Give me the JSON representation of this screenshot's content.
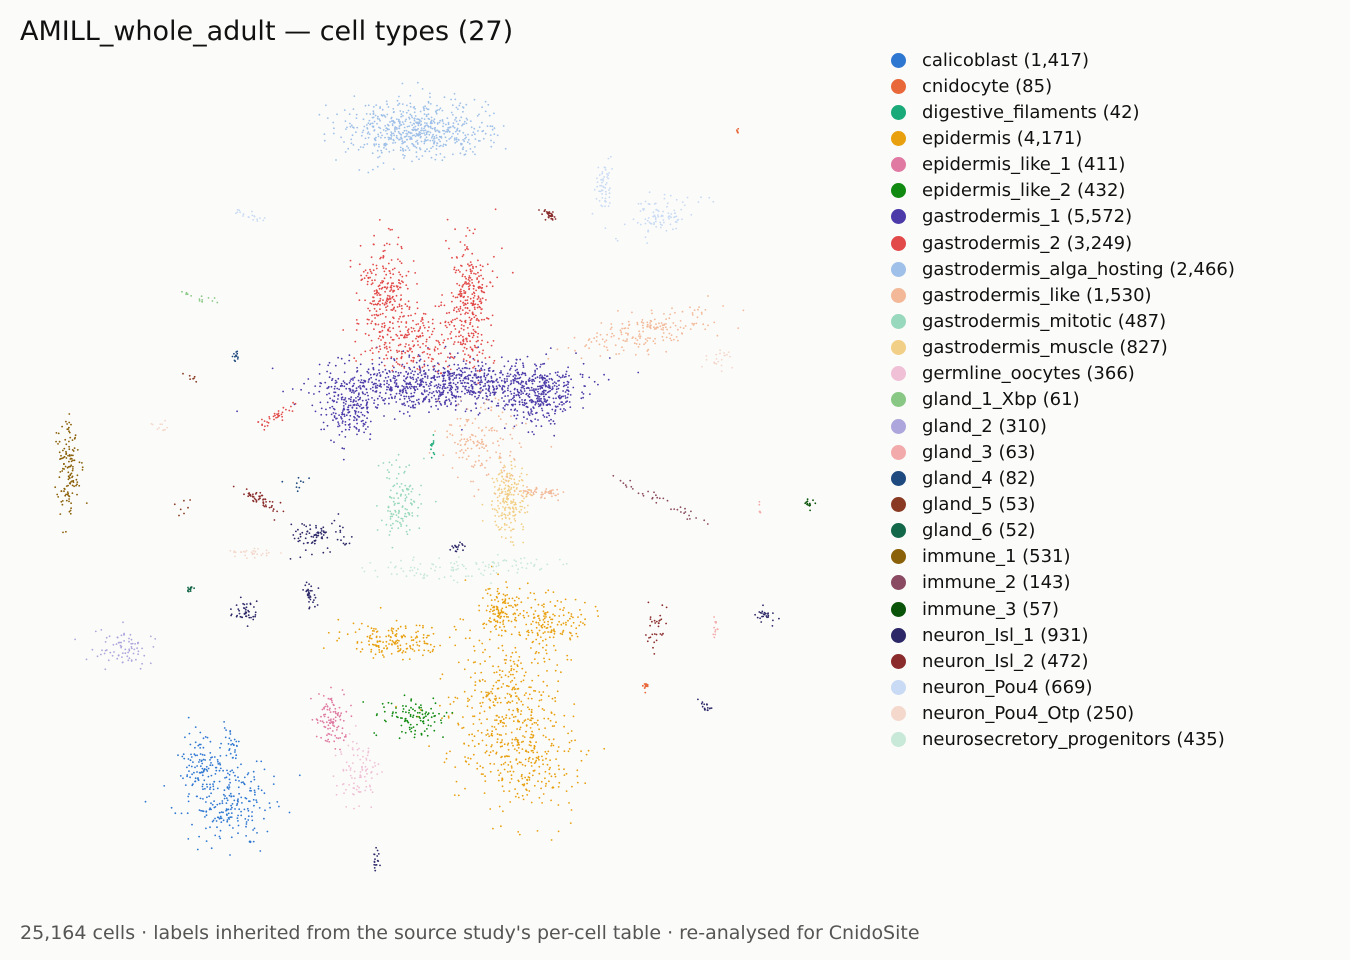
{
  "title": "AMILL_whole_adult — cell types (27)",
  "footer": "25,164 cells · labels inherited from the source study's per-cell table · re-analysed for CnidoSite",
  "legend": [
    {
      "label": "calicoblast (1,417)",
      "color": "#2f78d2"
    },
    {
      "label": "cnidocyte (85)",
      "color": "#e8683a"
    },
    {
      "label": "digestive_filaments (42)",
      "color": "#1aaa7a"
    },
    {
      "label": "epidermis (4,171)",
      "color": "#e8a00e"
    },
    {
      "label": "epidermis_like_1 (411)",
      "color": "#e07aa2"
    },
    {
      "label": "epidermis_like_2 (432)",
      "color": "#118a11"
    },
    {
      "label": "gastrodermis_1 (5,572)",
      "color": "#4b3aa8"
    },
    {
      "label": "gastrodermis_2 (3,249)",
      "color": "#e24a4a"
    },
    {
      "label": "gastrodermis_alga_hosting (2,466)",
      "color": "#9fc0e8"
    },
    {
      "label": "gastrodermis_like (1,530)",
      "color": "#f2b898"
    },
    {
      "label": "gastrodermis_mitotic (487)",
      "color": "#98d8bc"
    },
    {
      "label": "gastrodermis_muscle (827)",
      "color": "#f2cf86"
    },
    {
      "label": "germline_oocytes (366)",
      "color": "#f0c0d6"
    },
    {
      "label": "gland_1_Xbp (61)",
      "color": "#88c884"
    },
    {
      "label": "gland_2 (310)",
      "color": "#aca6dc"
    },
    {
      "label": "gland_3 (63)",
      "color": "#f2aaaa"
    },
    {
      "label": "gland_4 (82)",
      "color": "#1f4a80"
    },
    {
      "label": "gland_5 (53)",
      "color": "#8a3a22"
    },
    {
      "label": "gland_6 (52)",
      "color": "#14684a"
    },
    {
      "label": "immune_1 (531)",
      "color": "#8a6008"
    },
    {
      "label": "immune_2 (143)",
      "color": "#8a4a62"
    },
    {
      "label": "immune_3 (57)",
      "color": "#0a540a"
    },
    {
      "label": "neuron_Isl_1 (931)",
      "color": "#2c2868"
    },
    {
      "label": "neuron_Isl_2 (472)",
      "color": "#8a2c2c"
    },
    {
      "label": "neuron_Pou4 (669)",
      "color": "#c8daf4"
    },
    {
      "label": "neuron_Pou4_Otp (250)",
      "color": "#f4d8cc"
    },
    {
      "label": "neurosecretory_progenitors (435)",
      "color": "#c8e8d8"
    }
  ],
  "chart_data": {
    "type": "scatter",
    "title": "AMILL_whole_adult — cell types (27)",
    "xlabel": "",
    "ylabel": "",
    "axes_visible": false,
    "grid": false,
    "legend_position": "right",
    "total_cells": 25164,
    "series": [
      {
        "name": "calicoblast",
        "count": 1417,
        "color": "#2f78d2"
      },
      {
        "name": "cnidocyte",
        "count": 85,
        "color": "#e8683a"
      },
      {
        "name": "digestive_filaments",
        "count": 42,
        "color": "#1aaa7a"
      },
      {
        "name": "epidermis",
        "count": 4171,
        "color": "#e8a00e"
      },
      {
        "name": "epidermis_like_1",
        "count": 411,
        "color": "#e07aa2"
      },
      {
        "name": "epidermis_like_2",
        "count": 432,
        "color": "#118a11"
      },
      {
        "name": "gastrodermis_1",
        "count": 5572,
        "color": "#4b3aa8"
      },
      {
        "name": "gastrodermis_2",
        "count": 3249,
        "color": "#e24a4a"
      },
      {
        "name": "gastrodermis_alga_hosting",
        "count": 2466,
        "color": "#9fc0e8"
      },
      {
        "name": "gastrodermis_like",
        "count": 1530,
        "color": "#f2b898"
      },
      {
        "name": "gastrodermis_mitotic",
        "count": 487,
        "color": "#98d8bc"
      },
      {
        "name": "gastrodermis_muscle",
        "count": 827,
        "color": "#f2cf86"
      },
      {
        "name": "germline_oocytes",
        "count": 366,
        "color": "#f0c0d6"
      },
      {
        "name": "gland_1_Xbp",
        "count": 61,
        "color": "#88c884"
      },
      {
        "name": "gland_2",
        "count": 310,
        "color": "#aca6dc"
      },
      {
        "name": "gland_3",
        "count": 63,
        "color": "#f2aaaa"
      },
      {
        "name": "gland_4",
        "count": 82,
        "color": "#1f4a80"
      },
      {
        "name": "gland_5",
        "count": 53,
        "color": "#8a3a22"
      },
      {
        "name": "gland_6",
        "count": 52,
        "color": "#14684a"
      },
      {
        "name": "immune_1",
        "count": 531,
        "color": "#8a6008"
      },
      {
        "name": "immune_2",
        "count": 143,
        "color": "#8a4a62"
      },
      {
        "name": "immune_3",
        "count": 57,
        "color": "#0a540a"
      },
      {
        "name": "neuron_Isl_1",
        "count": 931,
        "color": "#2c2868"
      },
      {
        "name": "neuron_Isl_2",
        "count": 472,
        "color": "#8a2c2c"
      },
      {
        "name": "neuron_Pou4",
        "count": 669,
        "color": "#c8daf4"
      },
      {
        "name": "neuron_Pou4_Otp",
        "count": 250,
        "color": "#f4d8cc"
      },
      {
        "name": "neurosecretory_progenitors",
        "count": 435,
        "color": "#c8e8d8"
      }
    ]
  }
}
